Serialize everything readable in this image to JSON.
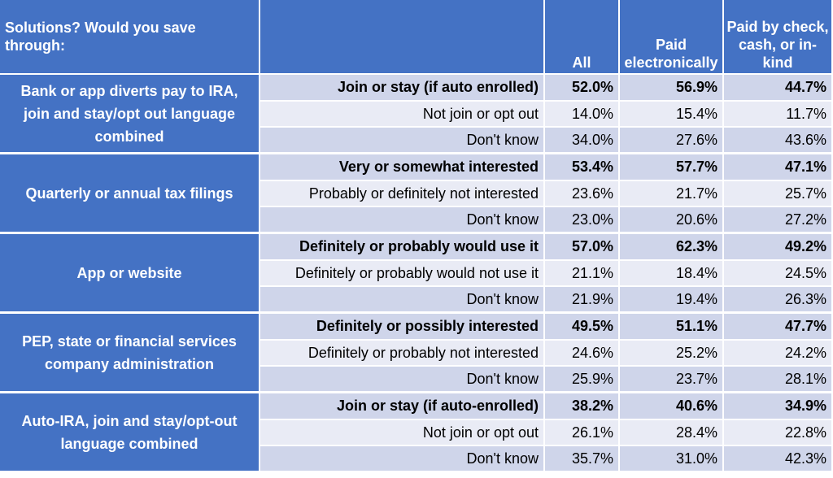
{
  "header": {
    "col0": "Solutions? Would you save through:",
    "col1": "",
    "col2": "All",
    "col3": "Paid electronically",
    "col4": "Paid by check, cash, or in-kind"
  },
  "groups": [
    {
      "label": "Bank or app diverts pay to IRA, join and stay/opt out language combined",
      "rows": [
        {
          "response": "Join or stay (if auto enrolled)",
          "all": "52.0%",
          "electronic": "56.9%",
          "check": "44.7%"
        },
        {
          "response": "Not join or opt out",
          "all": "14.0%",
          "electronic": "15.4%",
          "check": "11.7%"
        },
        {
          "response": "Don't know",
          "all": "34.0%",
          "electronic": "27.6%",
          "check": "43.6%"
        }
      ]
    },
    {
      "label": "Quarterly or annual tax filings",
      "rows": [
        {
          "response": "Very or somewhat interested",
          "all": "53.4%",
          "electronic": "57.7%",
          "check": "47.1%"
        },
        {
          "response": "Probably or definitely not interested",
          "all": "23.6%",
          "electronic": "21.7%",
          "check": "25.7%"
        },
        {
          "response": "Don't know",
          "all": "23.0%",
          "electronic": "20.6%",
          "check": "27.2%"
        }
      ]
    },
    {
      "label": "App or website",
      "rows": [
        {
          "response": "Definitely or probably would use it",
          "all": "57.0%",
          "electronic": "62.3%",
          "check": "49.2%"
        },
        {
          "response": "Definitely or probably would not use it",
          "all": "21.1%",
          "electronic": "18.4%",
          "check": "24.5%"
        },
        {
          "response": "Don't know",
          "all": "21.9%",
          "electronic": "19.4%",
          "check": "26.3%"
        }
      ]
    },
    {
      "label": "PEP, state or financial services company administration",
      "rows": [
        {
          "response": "Definitely or possibly interested",
          "all": "49.5%",
          "electronic": "51.1%",
          "check": "47.7%"
        },
        {
          "response": "Definitely or probably not interested",
          "all": "24.6%",
          "electronic": "25.2%",
          "check": "24.2%"
        },
        {
          "response": "Don't know",
          "all": "25.9%",
          "electronic": "23.7%",
          "check": "28.1%"
        }
      ]
    },
    {
      "label": "Auto-IRA, join and stay/opt-out language combined",
      "rows": [
        {
          "response": "Join or stay (if auto-enrolled)",
          "all": "38.2%",
          "electronic": "40.6%",
          "check": "34.9%"
        },
        {
          "response": "Not join or opt out",
          "all": "26.1%",
          "electronic": "28.4%",
          "check": "22.8%"
        },
        {
          "response": "Don't know",
          "all": "35.7%",
          "electronic": "31.0%",
          "check": "42.3%"
        }
      ]
    }
  ]
}
